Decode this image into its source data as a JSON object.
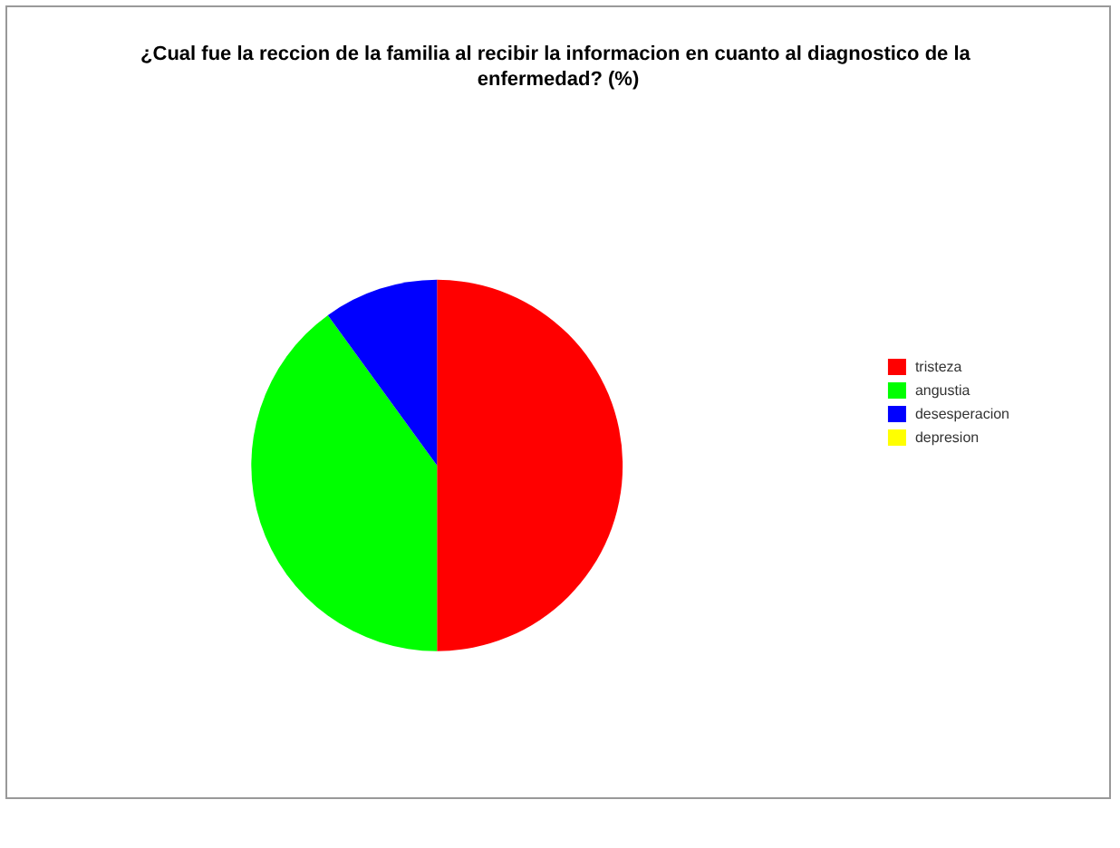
{
  "chart_data": {
    "type": "pie",
    "title": "¿Cual fue la reccion de la familia al recibir la informacion en cuanto al diagnostico de la enfermedad? (%)",
    "categories": [
      "tristeza",
      "angustia",
      "desesperacion",
      "depresion"
    ],
    "values": [
      50,
      40,
      10,
      0
    ],
    "colors": [
      "#ff0000",
      "#00ff00",
      "#0000ff",
      "#ffff00"
    ],
    "legend": "right"
  }
}
